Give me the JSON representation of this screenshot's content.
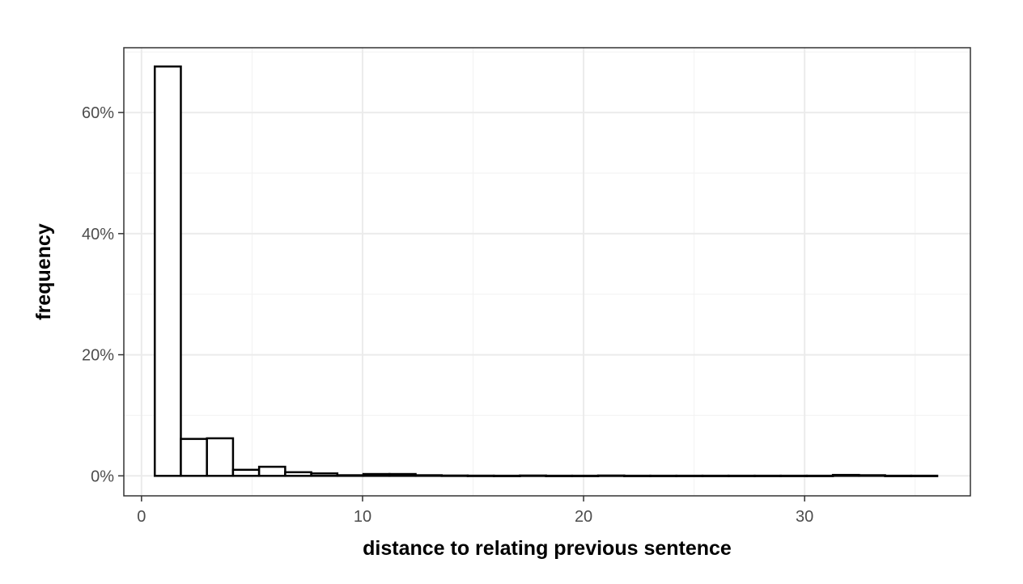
{
  "chart_data": {
    "type": "bar",
    "subtype": "histogram",
    "xlabel": "distance to relating previous sentence",
    "ylabel": "frequency",
    "xlim": [
      -0.8,
      37.5
    ],
    "ylim": [
      -3.3,
      70.7
    ],
    "x_ticks": [
      0,
      10,
      20,
      30
    ],
    "x_tick_labels": [
      "0",
      "10",
      "20",
      "30"
    ],
    "y_ticks": [
      0,
      20,
      40,
      60
    ],
    "y_tick_labels": [
      "0%",
      "20%",
      "40%",
      "60%"
    ],
    "y_format": "percent",
    "grid": true,
    "bin_width": 1.18,
    "bins": [
      {
        "x0": 0.6,
        "value": 67.6
      },
      {
        "x0": 1.78,
        "value": 6.1
      },
      {
        "x0": 2.96,
        "value": 6.2
      },
      {
        "x0": 4.14,
        "value": 1.0
      },
      {
        "x0": 5.32,
        "value": 1.5
      },
      {
        "x0": 6.5,
        "value": 0.6
      },
      {
        "x0": 7.68,
        "value": 0.4
      },
      {
        "x0": 8.86,
        "value": 0.1
      },
      {
        "x0": 10.04,
        "value": 0.3
      },
      {
        "x0": 11.22,
        "value": 0.3
      },
      {
        "x0": 12.4,
        "value": 0.1
      },
      {
        "x0": 13.58,
        "value": 0.05
      },
      {
        "x0": 14.76,
        "value": 0.03
      },
      {
        "x0": 15.94,
        "value": 0.02
      },
      {
        "x0": 17.12,
        "value": 0.05
      },
      {
        "x0": 18.3,
        "value": 0.02
      },
      {
        "x0": 19.48,
        "value": 0.02
      },
      {
        "x0": 20.66,
        "value": 0.05
      },
      {
        "x0": 21.84,
        "value": 0.02
      },
      {
        "x0": 23.02,
        "value": 0.02
      },
      {
        "x0": 24.2,
        "value": 0.02
      },
      {
        "x0": 25.38,
        "value": 0.02
      },
      {
        "x0": 26.56,
        "value": 0.02
      },
      {
        "x0": 27.74,
        "value": 0.02
      },
      {
        "x0": 28.92,
        "value": 0.02
      },
      {
        "x0": 30.1,
        "value": 0.02
      },
      {
        "x0": 31.28,
        "value": 0.15
      },
      {
        "x0": 32.46,
        "value": 0.1
      },
      {
        "x0": 33.64,
        "value": 0.02
      },
      {
        "x0": 34.82,
        "value": 0.02
      }
    ]
  }
}
